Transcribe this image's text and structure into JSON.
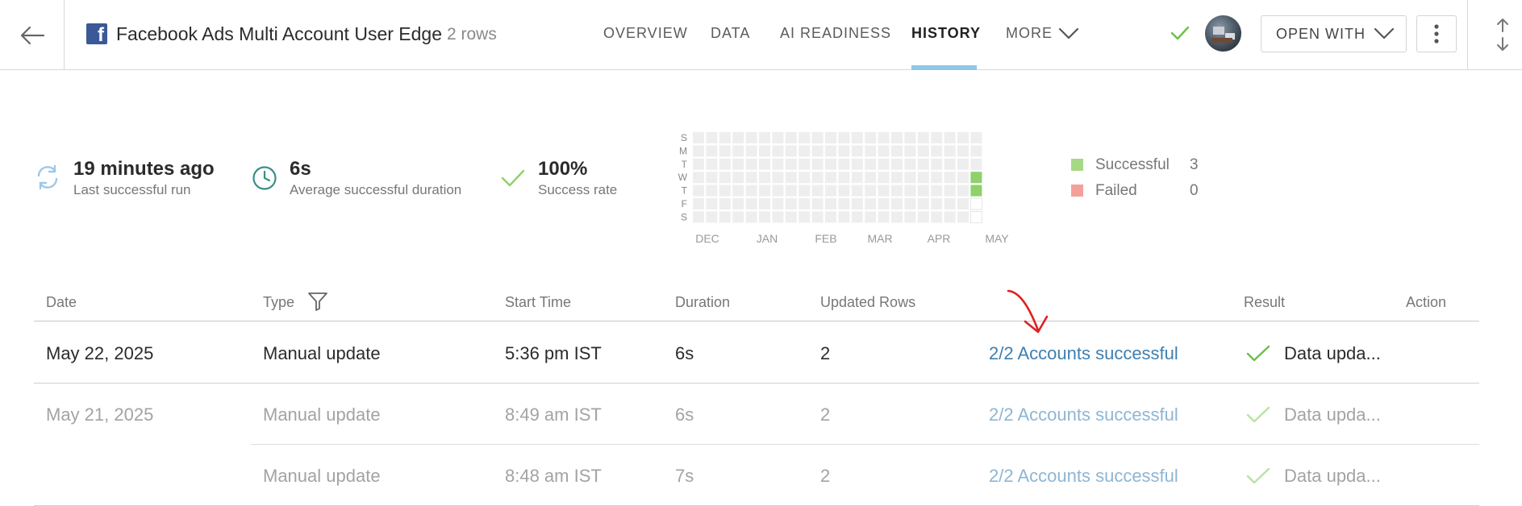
{
  "header": {
    "dataset_title": "Facebook Ads Multi Account User Edge",
    "row_count": "2 rows",
    "tabs": [
      {
        "label": "OVERVIEW"
      },
      {
        "label": "DATA"
      },
      {
        "label": "AI READINESS"
      },
      {
        "label": "HISTORY"
      },
      {
        "label": "MORE"
      }
    ],
    "open_with_label": "OPEN WITH",
    "icons": {
      "back": "arrow-left-icon",
      "brand": "facebook-icon",
      "more": "chevron-down-icon",
      "status": "check-icon",
      "menu": "kebab-icon",
      "sort": "sort-arrows-icon"
    }
  },
  "stats": [
    {
      "value": "19 minutes ago",
      "label": "Last successful run",
      "icon": "refresh-icon"
    },
    {
      "value": "6s",
      "label": "Average successful duration",
      "icon": "clock-icon"
    },
    {
      "value": "100%",
      "label": "Success rate",
      "icon": "check-icon"
    }
  ],
  "calendar": {
    "day_labels": [
      "S",
      "M",
      "T",
      "W",
      "T",
      "F",
      "S"
    ],
    "month_labels": [
      "DEC",
      "JAN",
      "FEB",
      "MAR",
      "APR",
      "MAY"
    ],
    "successful_days": 2,
    "colors": {
      "empty": "#eeeeee",
      "success": "#8fd16a",
      "failed": "#f4a09a"
    }
  },
  "legend": [
    {
      "label": "Successful",
      "count": "3",
      "color": "#a6d985"
    },
    {
      "label": "Failed",
      "count": "0",
      "color": "#f4a09a"
    }
  ],
  "table": {
    "columns": [
      "Date",
      "Type",
      "Start Time",
      "Duration",
      "Updated Rows",
      "Result",
      "Action"
    ],
    "rows": [
      {
        "date": "May 22, 2025",
        "type": "Manual update",
        "start": "5:36 pm IST",
        "duration": "6s",
        "updated": "2",
        "accounts": "2/2 Accounts successful",
        "result": "Data upda..."
      },
      {
        "date": "May 21, 2025",
        "type": "Manual update",
        "start": "8:49 am IST",
        "duration": "6s",
        "updated": "2",
        "accounts": "2/2 Accounts successful",
        "result": "Data upda..."
      },
      {
        "date": "",
        "type": "Manual update",
        "start": "8:48 am IST",
        "duration": "7s",
        "updated": "2",
        "accounts": "2/2 Accounts successful",
        "result": "Data upda..."
      }
    ]
  },
  "colors": {
    "accent_tab": "#8fc8e6",
    "link": "#3d7fb0",
    "success_check": "#6cc04a",
    "annotation": "#e02020"
  }
}
